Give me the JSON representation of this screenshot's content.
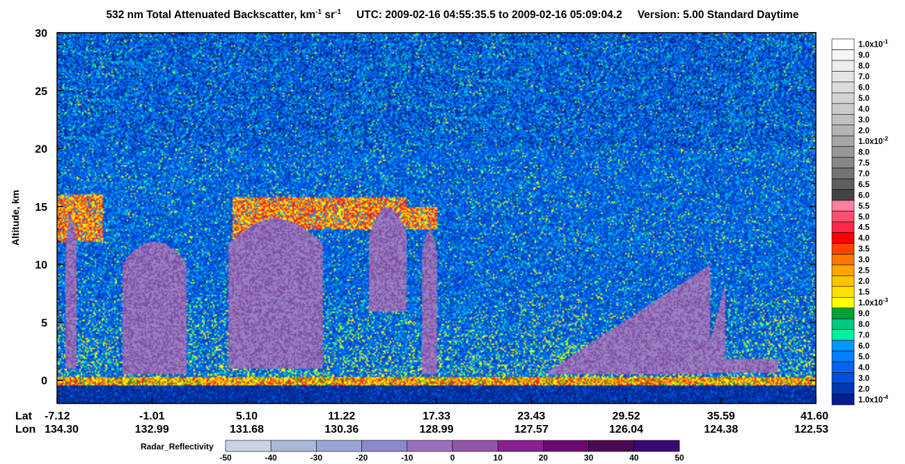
{
  "header": {
    "title_pre": "532 nm Total Attenuated Backscatter, km",
    "title_exp1": "-1",
    "title_mid": " sr",
    "title_exp2": "-1",
    "utc_label": "UTC:",
    "utc_start": "2009-02-16 04:55:35.5",
    "utc_to": "to",
    "utc_end": "2009-02-16 05:09:04.2",
    "version": "Version: 5.00",
    "product": "Standard",
    "daytime": "Daytime"
  },
  "chart_data": {
    "type": "heatmap",
    "ylabel": "Altitude, km",
    "ylim": [
      -2,
      30
    ],
    "y_ticks": [
      "0",
      "5",
      "10",
      "15",
      "20",
      "25",
      "30"
    ],
    "x_row_labels": [
      "Lat",
      "Lon"
    ],
    "x_ticks": [
      {
        "lat": "-7.12",
        "lon": "134.30"
      },
      {
        "lat": "-1.01",
        "lon": "132.99"
      },
      {
        "lat": "5.10",
        "lon": "131.68"
      },
      {
        "lat": "11.22",
        "lon": "130.36"
      },
      {
        "lat": "17.33",
        "lon": "128.99"
      },
      {
        "lat": "23.43",
        "lon": "127.57"
      },
      {
        "lat": "29.52",
        "lon": "126.04"
      },
      {
        "lat": "35.59",
        "lon": "124.38"
      },
      {
        "lat": "41.60",
        "lon": "122.53"
      }
    ],
    "backscatter_colorbar": {
      "labels": [
        "1.0x10-1",
        "9.0",
        "8.0",
        "7.0",
        "6.0",
        "5.0",
        "4.0",
        "3.0",
        "2.0",
        "1.0x10-2",
        "8.0",
        "7.5",
        "7.0",
        "6.5",
        "6.0",
        "5.5",
        "5.0",
        "4.5",
        "4.0",
        "3.5",
        "3.0",
        "2.5",
        "2.0",
        "1.5",
        "1.0x10-3",
        "9.0",
        "8.0",
        "7.0",
        "6.0",
        "5.0",
        "4.0",
        "3.0",
        "2.0",
        "1.0x10-4"
      ],
      "colors": [
        "#ffffff",
        "#f5f5f5",
        "#ededed",
        "#e4e4e4",
        "#dcdcdc",
        "#d3d3d3",
        "#cacaca",
        "#c0c0c0",
        "#b4b4b4",
        "#a6a6a6",
        "#979797",
        "#878787",
        "#747474",
        "#5e5e5e",
        "#444444",
        "#ff7fa0",
        "#ff5070",
        "#ff2848",
        "#ff0000",
        "#ff4400",
        "#ff7700",
        "#ffa500",
        "#ffc400",
        "#ffe100",
        "#ffff00",
        "#00a040",
        "#00c880",
        "#00f0a0",
        "#0098ff",
        "#0080ff",
        "#0068f0",
        "#0050d8",
        "#0038b0",
        "#001e90"
      ]
    },
    "radar_colorbar": {
      "title": "Radar_Reflectivity",
      "labels": [
        "-50",
        "-40",
        "-30",
        "-20",
        "-10",
        "0",
        "10",
        "20",
        "30",
        "40",
        "50"
      ],
      "colors": [
        "#c8d4e4",
        "#a8b8d8",
        "#9aa6d6",
        "#8c88cc",
        "#9a70bc",
        "#9256a8",
        "#8a1f8e",
        "#6a0a6e",
        "#4a0a50",
        "#380870"
      ]
    }
  }
}
